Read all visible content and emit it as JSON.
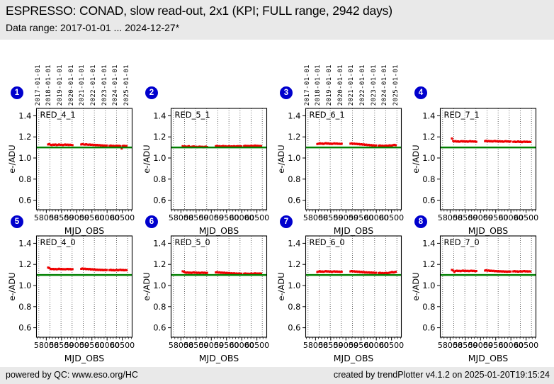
{
  "header": {
    "title": "ESPRESSO: CONAD, slow read-out, 2x1 (KPI; FULL range, 2942 days)",
    "subtitle": "Data range: 2017-01-01 ... 2024-12-27*"
  },
  "footer": {
    "left": "powered by QC: www.eso.org/HC",
    "right": "created by trendPlotter v4.1.2 on 2025-01-20T19:15:24"
  },
  "colors": {
    "badge_blue": "#0000cd",
    "point_red": "#ee0000",
    "line_green": "#008000",
    "band_bg": "#e9e9e9"
  },
  "chart_data": {
    "type": "scatter",
    "xlabel": "MJD_OBS",
    "ylabel": "e-/ADU",
    "xlim": [
      57677,
      60823
    ],
    "ylim": [
      0.51,
      1.47
    ],
    "x_ticks": [
      58000,
      58500,
      59000,
      59500,
      60000,
      60500
    ],
    "x_minor_tick_step": 100,
    "y_ticks": [
      0.6,
      0.8,
      1.0,
      1.2,
      1.4
    ],
    "grid": "vertical-dotted-at-year-boundaries",
    "year_gridlines_mjd": [
      57754,
      58119,
      58484,
      58849,
      59215,
      59580,
      59945,
      60310,
      60676
    ],
    "year_grid_labels": [
      "2017-01-01",
      "2018-01-01",
      "2019-01-01",
      "2020-01-01",
      "2021-01-01",
      "2022-01-01",
      "2023-01-01",
      "2024-01-01",
      "2025-01-01"
    ],
    "reference_line_y": 1.1,
    "x": [
      58060,
      58100,
      58140,
      58180,
      58220,
      58260,
      58300,
      58340,
      58380,
      58420,
      58460,
      58500,
      58540,
      58580,
      58620,
      58660,
      58700,
      58740,
      58780,
      58820,
      58860,
      59150,
      59190,
      59230,
      59270,
      59310,
      59350,
      59390,
      59430,
      59470,
      59510,
      59550,
      59590,
      59630,
      59670,
      59710,
      59750,
      59790,
      59830,
      59870,
      59910,
      59950,
      59990,
      60080,
      60120,
      60160,
      60200,
      60240,
      60280,
      60320,
      60360,
      60400,
      60440,
      60480,
      60520,
      60560,
      60600,
      60640
    ],
    "panels": [
      {
        "number": 1,
        "label": "RED_4_1",
        "show_dates": true,
        "y": [
          1.128,
          1.132,
          1.125,
          1.122,
          1.127,
          1.124,
          1.128,
          1.122,
          1.125,
          1.128,
          1.124,
          1.126,
          1.122,
          1.125,
          1.128,
          1.124,
          1.127,
          1.123,
          1.126,
          1.124,
          1.122,
          1.128,
          1.132,
          1.128,
          1.126,
          1.13,
          1.127,
          1.125,
          1.128,
          1.124,
          1.126,
          1.122,
          1.125,
          1.121,
          1.124,
          1.12,
          1.122,
          1.118,
          1.12,
          1.117,
          1.119,
          1.116,
          1.118,
          1.115,
          1.118,
          1.113,
          1.116,
          1.112,
          1.115,
          1.117,
          1.113,
          1.116,
          1.112,
          1.09,
          1.114,
          1.116,
          1.112,
          1.114
        ]
      },
      {
        "number": 2,
        "label": "RED_5_1",
        "show_dates": false,
        "y": [
          1.112,
          1.108,
          1.11,
          1.105,
          1.109,
          1.112,
          1.106,
          1.103,
          1.108,
          1.11,
          1.105,
          1.107,
          1.103,
          1.106,
          1.109,
          1.104,
          1.107,
          1.102,
          1.106,
          1.108,
          1.104,
          1.112,
          1.115,
          1.11,
          1.113,
          1.108,
          1.111,
          1.114,
          1.109,
          1.112,
          1.107,
          1.11,
          1.113,
          1.108,
          1.111,
          1.109,
          1.112,
          1.108,
          1.111,
          1.113,
          1.109,
          1.112,
          1.11,
          1.113,
          1.116,
          1.112,
          1.115,
          1.111,
          1.114,
          1.117,
          1.112,
          1.115,
          1.118,
          1.113,
          1.116,
          1.112,
          1.115,
          1.113
        ]
      },
      {
        "number": 3,
        "label": "RED_6_1",
        "show_dates": true,
        "y": [
          1.132,
          1.136,
          1.14,
          1.135,
          1.138,
          1.133,
          1.137,
          1.141,
          1.136,
          1.139,
          1.134,
          1.137,
          1.133,
          1.136,
          1.139,
          1.135,
          1.138,
          1.134,
          1.136,
          1.133,
          1.135,
          1.136,
          1.139,
          1.134,
          1.137,
          1.132,
          1.135,
          1.13,
          1.133,
          1.128,
          1.131,
          1.126,
          1.129,
          1.124,
          1.127,
          1.122,
          1.125,
          1.12,
          1.123,
          1.118,
          1.121,
          1.117,
          1.119,
          1.116,
          1.119,
          1.114,
          1.117,
          1.113,
          1.116,
          1.118,
          1.114,
          1.117,
          1.12,
          1.116,
          1.119,
          1.122,
          1.125,
          1.121
        ]
      },
      {
        "number": 4,
        "label": "RED_7_1",
        "show_dates": false,
        "y": [
          1.185,
          1.162,
          1.157,
          1.16,
          1.155,
          1.158,
          1.154,
          1.157,
          1.16,
          1.156,
          1.159,
          1.155,
          1.158,
          1.154,
          1.157,
          1.16,
          1.156,
          1.158,
          1.155,
          1.157,
          1.154,
          1.16,
          1.163,
          1.158,
          1.161,
          1.157,
          1.16,
          1.156,
          1.159,
          1.162,
          1.157,
          1.16,
          1.156,
          1.159,
          1.155,
          1.158,
          1.154,
          1.157,
          1.16,
          1.156,
          1.158,
          1.154,
          1.157,
          1.153,
          1.156,
          1.151,
          1.154,
          1.157,
          1.152,
          1.155,
          1.15,
          1.153,
          1.156,
          1.152,
          1.155,
          1.151,
          1.154,
          1.152
        ]
      },
      {
        "number": 5,
        "label": "RED_4_0",
        "show_dates": false,
        "y": [
          1.17,
          1.165,
          1.158,
          1.155,
          1.158,
          1.154,
          1.157,
          1.153,
          1.156,
          1.159,
          1.155,
          1.158,
          1.154,
          1.156,
          1.153,
          1.156,
          1.158,
          1.154,
          1.157,
          1.153,
          1.155,
          1.158,
          1.162,
          1.157,
          1.16,
          1.155,
          1.158,
          1.154,
          1.157,
          1.152,
          1.155,
          1.15,
          1.153,
          1.148,
          1.151,
          1.147,
          1.15,
          1.146,
          1.149,
          1.145,
          1.148,
          1.145,
          1.147,
          1.146,
          1.149,
          1.144,
          1.147,
          1.143,
          1.146,
          1.148,
          1.144,
          1.147,
          1.15,
          1.145,
          1.148,
          1.144,
          1.147,
          1.145
        ]
      },
      {
        "number": 6,
        "label": "RED_5_0",
        "show_dates": false,
        "y": [
          1.135,
          1.13,
          1.124,
          1.121,
          1.124,
          1.12,
          1.123,
          1.119,
          1.122,
          1.125,
          1.121,
          1.123,
          1.119,
          1.122,
          1.118,
          1.121,
          1.123,
          1.119,
          1.122,
          1.118,
          1.12,
          1.124,
          1.127,
          1.122,
          1.125,
          1.12,
          1.123,
          1.119,
          1.122,
          1.117,
          1.12,
          1.116,
          1.119,
          1.114,
          1.117,
          1.113,
          1.116,
          1.112,
          1.115,
          1.111,
          1.114,
          1.111,
          1.113,
          1.112,
          1.115,
          1.11,
          1.113,
          1.109,
          1.112,
          1.114,
          1.11,
          1.113,
          1.116,
          1.111,
          1.114,
          1.112,
          1.115,
          1.113
        ]
      },
      {
        "number": 7,
        "label": "RED_6_0",
        "show_dates": false,
        "y": [
          1.128,
          1.132,
          1.136,
          1.131,
          1.134,
          1.13,
          1.133,
          1.137,
          1.132,
          1.135,
          1.13,
          1.133,
          1.129,
          1.132,
          1.135,
          1.131,
          1.134,
          1.13,
          1.132,
          1.129,
          1.131,
          1.134,
          1.138,
          1.133,
          1.136,
          1.131,
          1.134,
          1.129,
          1.132,
          1.127,
          1.13,
          1.125,
          1.128,
          1.123,
          1.126,
          1.122,
          1.125,
          1.121,
          1.124,
          1.12,
          1.123,
          1.119,
          1.121,
          1.118,
          1.121,
          1.116,
          1.119,
          1.115,
          1.118,
          1.12,
          1.116,
          1.119,
          1.122,
          1.125,
          1.128,
          1.124,
          1.127,
          1.13
        ]
      },
      {
        "number": 8,
        "label": "RED_7_0",
        "show_dates": false,
        "y": [
          1.148,
          1.142,
          1.128,
          1.138,
          1.141,
          1.137,
          1.14,
          1.136,
          1.139,
          1.142,
          1.138,
          1.141,
          1.137,
          1.14,
          1.136,
          1.139,
          1.141,
          1.137,
          1.14,
          1.136,
          1.138,
          1.142,
          1.145,
          1.14,
          1.143,
          1.138,
          1.141,
          1.137,
          1.14,
          1.135,
          1.138,
          1.134,
          1.137,
          1.133,
          1.136,
          1.132,
          1.135,
          1.131,
          1.134,
          1.13,
          1.133,
          1.131,
          1.133,
          1.134,
          1.137,
          1.132,
          1.135,
          1.131,
          1.134,
          1.136,
          1.132,
          1.135,
          1.138,
          1.133,
          1.136,
          1.132,
          1.135,
          1.133
        ]
      }
    ]
  }
}
